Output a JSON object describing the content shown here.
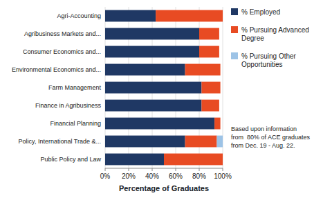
{
  "chart_data": {
    "type": "bar",
    "orientation": "horizontal",
    "stacked": true,
    "categories": [
      "Agri-Accounting",
      "Agribusiness Markets and...",
      "Consumer Economics and...",
      "Environmental Economics and...",
      "Farm Management",
      "Finance in Agribusiness",
      "Financial Planning",
      "Policy, International Trade &...",
      "Public Policy and Law"
    ],
    "series": [
      {
        "name": "% Employed",
        "color": "#1F3864",
        "values": [
          43,
          80,
          80,
          68,
          82,
          82,
          93,
          68,
          50
        ]
      },
      {
        "name": "% Pursuing Advanced\nDegree",
        "color": "#E84B23",
        "values": [
          57,
          17,
          17,
          30,
          16,
          15,
          5,
          27,
          50
        ]
      },
      {
        "name": "% Pursuing Other\nOpportunities",
        "color": "#9DC3E6",
        "values": [
          0,
          0,
          0,
          0,
          0,
          0,
          0,
          5,
          0
        ]
      }
    ],
    "x_label": "Percentage of Graduates",
    "xlim": [
      0,
      100
    ],
    "xticks": [
      {
        "value": 0,
        "label": "0%"
      },
      {
        "value": 20,
        "label": "20%"
      },
      {
        "value": 40,
        "label": "40%"
      },
      {
        "value": 60,
        "label": "60%"
      },
      {
        "value": 80,
        "label": "80%"
      },
      {
        "value": 100,
        "label": "100%"
      }
    ],
    "grid": true,
    "legend": "right",
    "annotation": "Based upon information\nfrom  80% of ACE graduates\nfrom Dec. 19 - Aug. 22."
  }
}
